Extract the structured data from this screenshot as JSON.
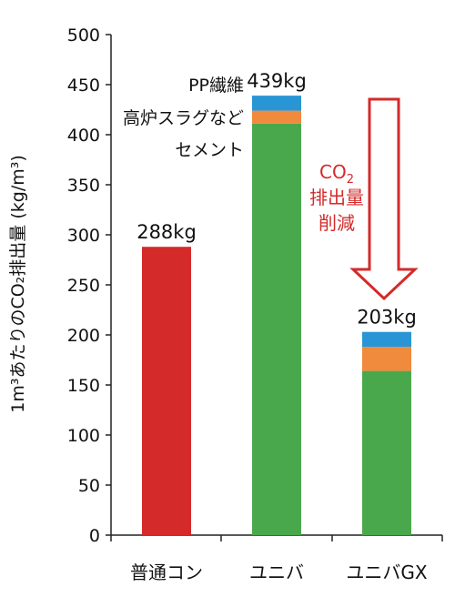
{
  "chart_data": {
    "type": "bar",
    "stacked": true,
    "title": "",
    "xlabel": "",
    "ylabel": "1m³あたりのCO₂排出量 (kg/m³)",
    "ylim": [
      0,
      500
    ],
    "yticks": [
      0,
      50,
      100,
      150,
      200,
      250,
      300,
      350,
      400,
      450,
      500
    ],
    "grid": false,
    "categories": [
      "普通コン",
      "ユニバ",
      "ユニバGX"
    ],
    "series": [
      {
        "name": "セメント",
        "color": "#4aa84c",
        "values": [
          null,
          411,
          164
        ]
      },
      {
        "name": "高炉スラグなど",
        "color": "#f08a3c",
        "values": [
          null,
          13,
          24
        ]
      },
      {
        "name": "PP繊維",
        "color": "#2a95d4",
        "values": [
          null,
          15,
          15
        ]
      },
      {
        "name": "",
        "color": "#d42a2a",
        "values": [
          288,
          null,
          null
        ]
      }
    ],
    "totals": [
      "288kg",
      "439kg",
      "203kg"
    ],
    "annotation": {
      "line1_main": "CO",
      "line1_sub": "2",
      "line2": "排出量",
      "line3": "削減",
      "color": "#d42a2a"
    }
  }
}
